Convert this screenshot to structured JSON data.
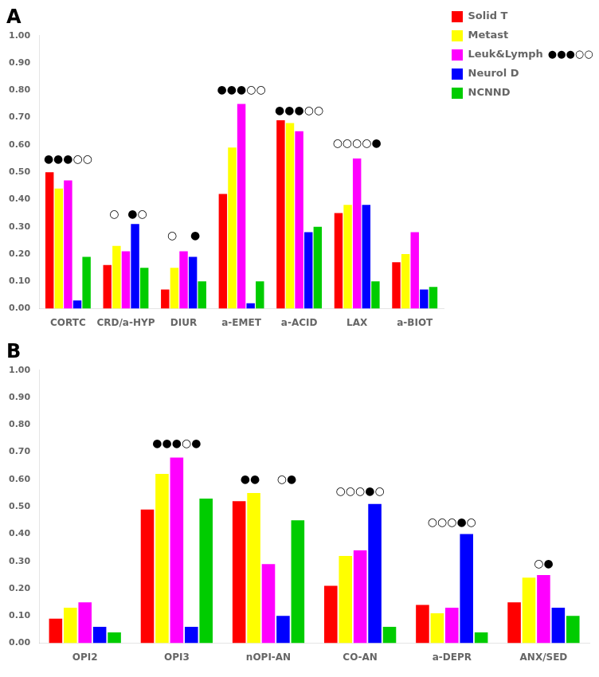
{
  "chart_data": [
    {
      "type": "bar",
      "title": "A",
      "categories": [
        "CORTC",
        "CRD/a-HYP",
        "DIUR",
        "a-EMET",
        "a-ACID",
        "LAX",
        "a-BIOT"
      ],
      "series": [
        {
          "name": "Solid T",
          "color": "#ff0000",
          "values": [
            0.5,
            0.16,
            0.07,
            0.42,
            0.69,
            0.35,
            0.17
          ]
        },
        {
          "name": "Metast",
          "color": "#ffff00",
          "values": [
            0.44,
            0.23,
            0.15,
            0.59,
            0.68,
            0.38,
            0.2
          ]
        },
        {
          "name": "Leuk&Lymph",
          "color": "#ff00ff",
          "values": [
            0.47,
            0.21,
            0.21,
            0.75,
            0.65,
            0.55,
            0.28
          ]
        },
        {
          "name": "Neurol D",
          "color": "#0000ff",
          "values": [
            0.03,
            0.31,
            0.19,
            0.02,
            0.28,
            0.38,
            0.07
          ]
        },
        {
          "name": "NCNND",
          "color": "#00cc00",
          "values": [
            0.19,
            0.15,
            0.1,
            0.1,
            0.3,
            0.1,
            0.08
          ]
        }
      ],
      "ylim": [
        0,
        1.0
      ],
      "yticks": [
        {
          "value": 0.0,
          "label": "0.00"
        },
        {
          "value": 0.1,
          "label": "0.10"
        },
        {
          "value": 0.2,
          "label": "0.20"
        },
        {
          "value": 0.3,
          "label": "0.30"
        },
        {
          "value": 0.4,
          "label": "0.40"
        },
        {
          "value": 0.5,
          "label": "0.50"
        },
        {
          "value": 0.6,
          "label": "0.60"
        },
        {
          "value": 0.7,
          "label": "0.70"
        },
        {
          "value": 0.8,
          "label": "0.80"
        },
        {
          "value": 0.9,
          "label": "0.90"
        },
        {
          "value": 1.0,
          "label": "1.00"
        }
      ],
      "grid": false,
      "legend": "upper right",
      "annotations": [
        {
          "x": "CORTC",
          "y": 0.545,
          "text": "●●●○○"
        },
        {
          "x": "CRD/a-HYP",
          "y": 0.345,
          "text": "○"
        },
        {
          "x": "CRD/a-HYP",
          "y": 0.345,
          "text": "●○"
        },
        {
          "x": "DIUR",
          "y": 0.265,
          "text": "○"
        },
        {
          "x": "DIUR",
          "y": 0.265,
          "text": "●"
        },
        {
          "x": "a-EMET",
          "y": 0.8,
          "text": "●●●○○"
        },
        {
          "x": "a-ACID",
          "y": 0.725,
          "text": "●●●○○"
        },
        {
          "x": "LAX",
          "y": 0.605,
          "text": "○○○○●"
        },
        {
          "series": "Leuk&Lymph",
          "text": "●●●○○"
        }
      ]
    },
    {
      "type": "bar",
      "title": "B",
      "categories": [
        "OPI2",
        "OPI3",
        "nOPI-AN",
        "CO-AN",
        "a-DEPR",
        "ANX/SED"
      ],
      "series": [
        {
          "name": "Solid T",
          "color": "#ff0000",
          "values": [
            0.09,
            0.49,
            0.52,
            0.21,
            0.14,
            0.15
          ]
        },
        {
          "name": "Metast",
          "color": "#ffff00",
          "values": [
            0.13,
            0.62,
            0.55,
            0.32,
            0.11,
            0.24
          ]
        },
        {
          "name": "Leuk&Lymph",
          "color": "#ff00ff",
          "values": [
            0.15,
            0.68,
            0.29,
            0.34,
            0.13,
            0.25
          ]
        },
        {
          "name": "Neurol D",
          "color": "#0000ff",
          "values": [
            0.06,
            0.06,
            0.1,
            0.51,
            0.4,
            0.13
          ]
        },
        {
          "name": "NCNND",
          "color": "#00cc00",
          "values": [
            0.04,
            0.53,
            0.45,
            0.06,
            0.04,
            0.1
          ]
        }
      ],
      "ylim": [
        0,
        1.0
      ],
      "yticks": [
        {
          "value": 0.0,
          "label": "0.00"
        },
        {
          "value": 0.1,
          "label": "0.10"
        },
        {
          "value": 0.2,
          "label": "0.20"
        },
        {
          "value": 0.3,
          "label": "0.30"
        },
        {
          "value": 0.4,
          "label": "0.40"
        },
        {
          "value": 0.5,
          "label": "0.50"
        },
        {
          "value": 0.6,
          "label": "0.60"
        },
        {
          "value": 0.7,
          "label": "0.70"
        },
        {
          "value": 0.8,
          "label": "0.80"
        },
        {
          "value": 0.9,
          "label": "0.90"
        },
        {
          "value": 1.0,
          "label": "1.00"
        }
      ],
      "grid": false,
      "annotations": [
        {
          "x": "OPI3",
          "y": 0.73,
          "text": "●●●○●"
        },
        {
          "x": "nOPI-AN",
          "y": 0.6,
          "text": "●●"
        },
        {
          "x": "nOPI-AN",
          "y": 0.6,
          "text": "○●"
        },
        {
          "x": "CO-AN",
          "y": 0.555,
          "text": "○○○●○"
        },
        {
          "x": "a-DEPR",
          "y": 0.44,
          "text": "○○○●○"
        },
        {
          "x": "ANX/SED",
          "y": 0.29,
          "text": "○●"
        }
      ]
    }
  ]
}
